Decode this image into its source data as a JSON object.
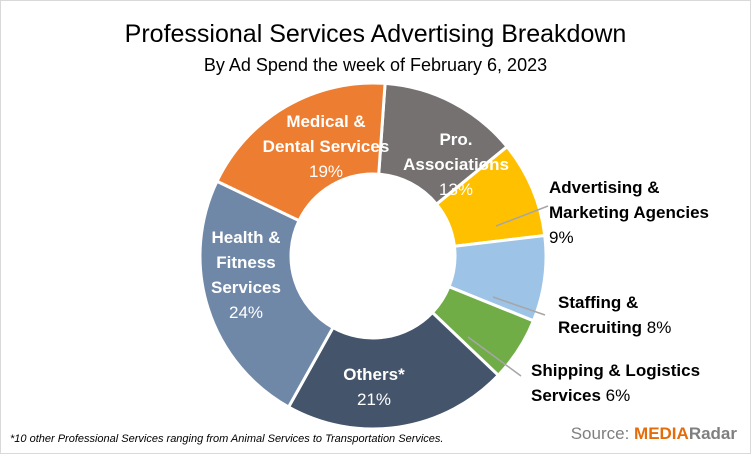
{
  "chart_data": {
    "type": "donut",
    "title": "Professional Services Advertising Breakdown",
    "subtitle": "By Ad Spend the week of February 6, 2023",
    "slices": [
      {
        "label": [
          "Pro.",
          "Associations"
        ],
        "value": 13,
        "pct": "13%",
        "color": "#767171",
        "label_pos": "inside"
      },
      {
        "label": [
          "Advertising &",
          "Marketing Agencies"
        ],
        "value": 9,
        "pct": "9%",
        "color": "#ffc000",
        "label_pos": "outside"
      },
      {
        "label": [
          "Staffing &",
          "Recruiting"
        ],
        "value": 8,
        "pct": "8%",
        "color": "#9dc3e6",
        "label_pos": "outside"
      },
      {
        "label": [
          "Shipping & Logistics",
          "Services"
        ],
        "value": 6,
        "pct": "6%",
        "color": "#70ad47",
        "label_pos": "outside"
      },
      {
        "label": [
          "Others*"
        ],
        "value": 21,
        "pct": "21%",
        "color": "#44546a",
        "label_pos": "inside"
      },
      {
        "label": [
          "Health &",
          "Fitness",
          "Services"
        ],
        "value": 24,
        "pct": "24%",
        "color": "#7088a8",
        "label_pos": "inside"
      },
      {
        "label": [
          "Medical &",
          "Dental Services"
        ],
        "value": 19,
        "pct": "19%",
        "color": "#ed7d31",
        "label_pos": "inside"
      }
    ],
    "footnote": "*10 other Professional Services ranging from Animal Services to Transportation Services.",
    "source": {
      "prefix": "Source: ",
      "brand_a": "MEDIA",
      "brand_b": "Radar"
    }
  }
}
